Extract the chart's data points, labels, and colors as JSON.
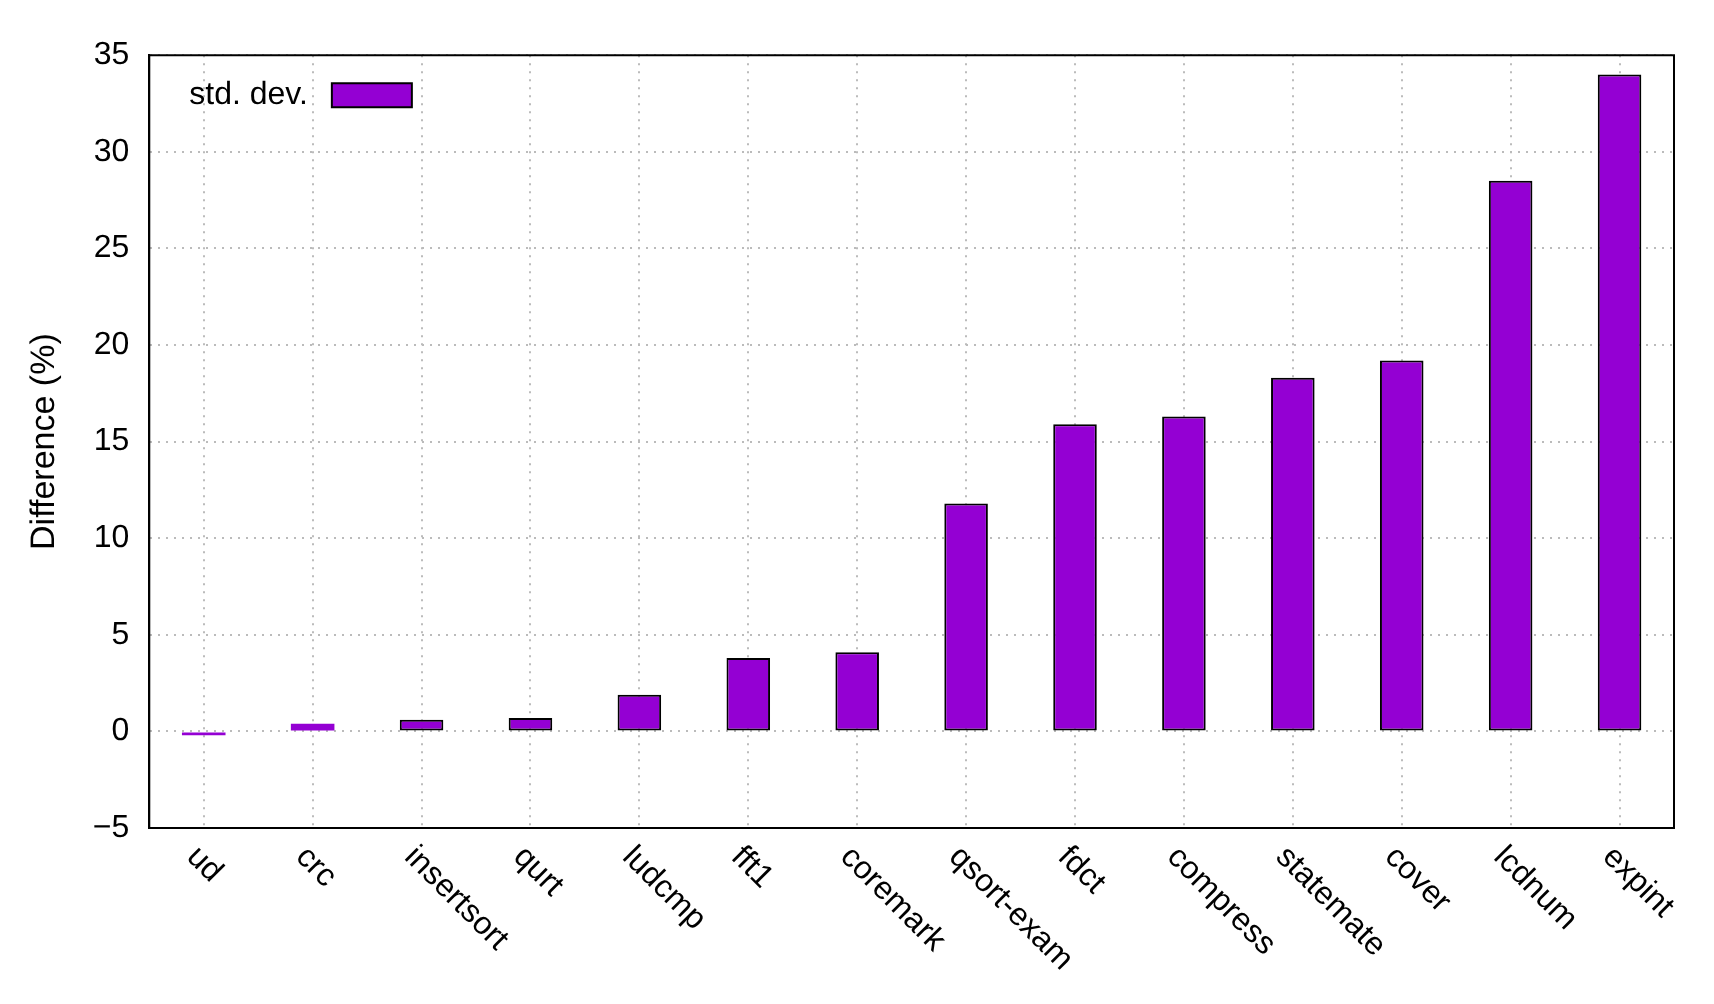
{
  "chart_data": {
    "type": "bar",
    "ylabel": "Difference (%)",
    "categories": [
      "ud",
      "crc",
      "insertsort",
      "qurt",
      "ludcmp",
      "fft1",
      "coremark",
      "qsort-exam",
      "fdct",
      "compress",
      "statemate",
      "cover",
      "lcdnum",
      "expint"
    ],
    "series": [
      {
        "name": "std. dev.",
        "color": "#9400d3",
        "values": [
          -0.2,
          0.4,
          0.6,
          0.7,
          1.9,
          3.8,
          4.1,
          11.8,
          15.9,
          16.3,
          18.3,
          19.2,
          28.5,
          34
        ]
      }
    ],
    "ylim": [
      -5,
      35
    ],
    "yticks": [
      {
        "value": -5,
        "label": "−5"
      },
      0,
      5,
      10,
      15,
      20,
      25,
      30,
      35
    ],
    "grid": true,
    "legend": "top left"
  }
}
